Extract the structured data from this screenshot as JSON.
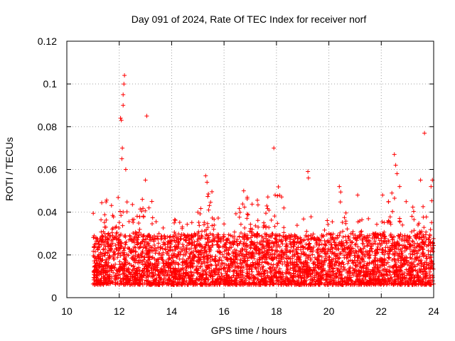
{
  "chart_data": {
    "type": "scatter",
    "title": "Day 091 of 2024, Rate Of TEC Index for receiver norf",
    "xlabel": "GPS time / hours",
    "ylabel": "ROTI / TECUs",
    "xlim": [
      10,
      24
    ],
    "ylim": [
      0,
      0.12
    ],
    "xticks": [
      10,
      12,
      14,
      16,
      18,
      20,
      22,
      24
    ],
    "xtick_labels": [
      "10",
      "12",
      "14",
      "16",
      "18",
      "20",
      "22",
      "24"
    ],
    "yticks": [
      0,
      0.02,
      0.04,
      0.06,
      0.08,
      0.1,
      0.12
    ],
    "ytick_labels": [
      "0",
      "0.02",
      "0.04",
      "0.06",
      "0.08",
      "0.1",
      "0.12"
    ],
    "grid": true,
    "marker": "+",
    "color": "#ff0000",
    "bulk": {
      "x_range": [
        11.0,
        24.0
      ],
      "typical_range": [
        0.005,
        0.025
      ],
      "upper_envelope": 0.04
    },
    "highlights": [
      {
        "x": 12.05,
        "y": 0.084
      },
      {
        "x": 12.08,
        "y": 0.083
      },
      {
        "x": 12.15,
        "y": 0.09
      },
      {
        "x": 12.18,
        "y": 0.1
      },
      {
        "x": 12.2,
        "y": 0.104
      },
      {
        "x": 12.15,
        "y": 0.095
      },
      {
        "x": 12.12,
        "y": 0.07
      },
      {
        "x": 12.1,
        "y": 0.065
      },
      {
        "x": 12.25,
        "y": 0.06
      },
      {
        "x": 13.05,
        "y": 0.085
      },
      {
        "x": 13.0,
        "y": 0.055
      },
      {
        "x": 15.3,
        "y": 0.057
      },
      {
        "x": 15.35,
        "y": 0.054
      },
      {
        "x": 16.75,
        "y": 0.05
      },
      {
        "x": 17.9,
        "y": 0.07
      },
      {
        "x": 17.95,
        "y": 0.048
      },
      {
        "x": 19.2,
        "y": 0.059
      },
      {
        "x": 19.22,
        "y": 0.056
      },
      {
        "x": 20.4,
        "y": 0.052
      },
      {
        "x": 21.1,
        "y": 0.048
      },
      {
        "x": 22.5,
        "y": 0.067
      },
      {
        "x": 22.55,
        "y": 0.062
      },
      {
        "x": 22.6,
        "y": 0.058
      },
      {
        "x": 22.7,
        "y": 0.052
      },
      {
        "x": 23.5,
        "y": 0.055
      },
      {
        "x": 23.65,
        "y": 0.077
      },
      {
        "x": 23.95,
        "y": 0.055
      },
      {
        "x": 23.9,
        "y": 0.052
      },
      {
        "x": 22.05,
        "y": 0.048
      }
    ]
  }
}
